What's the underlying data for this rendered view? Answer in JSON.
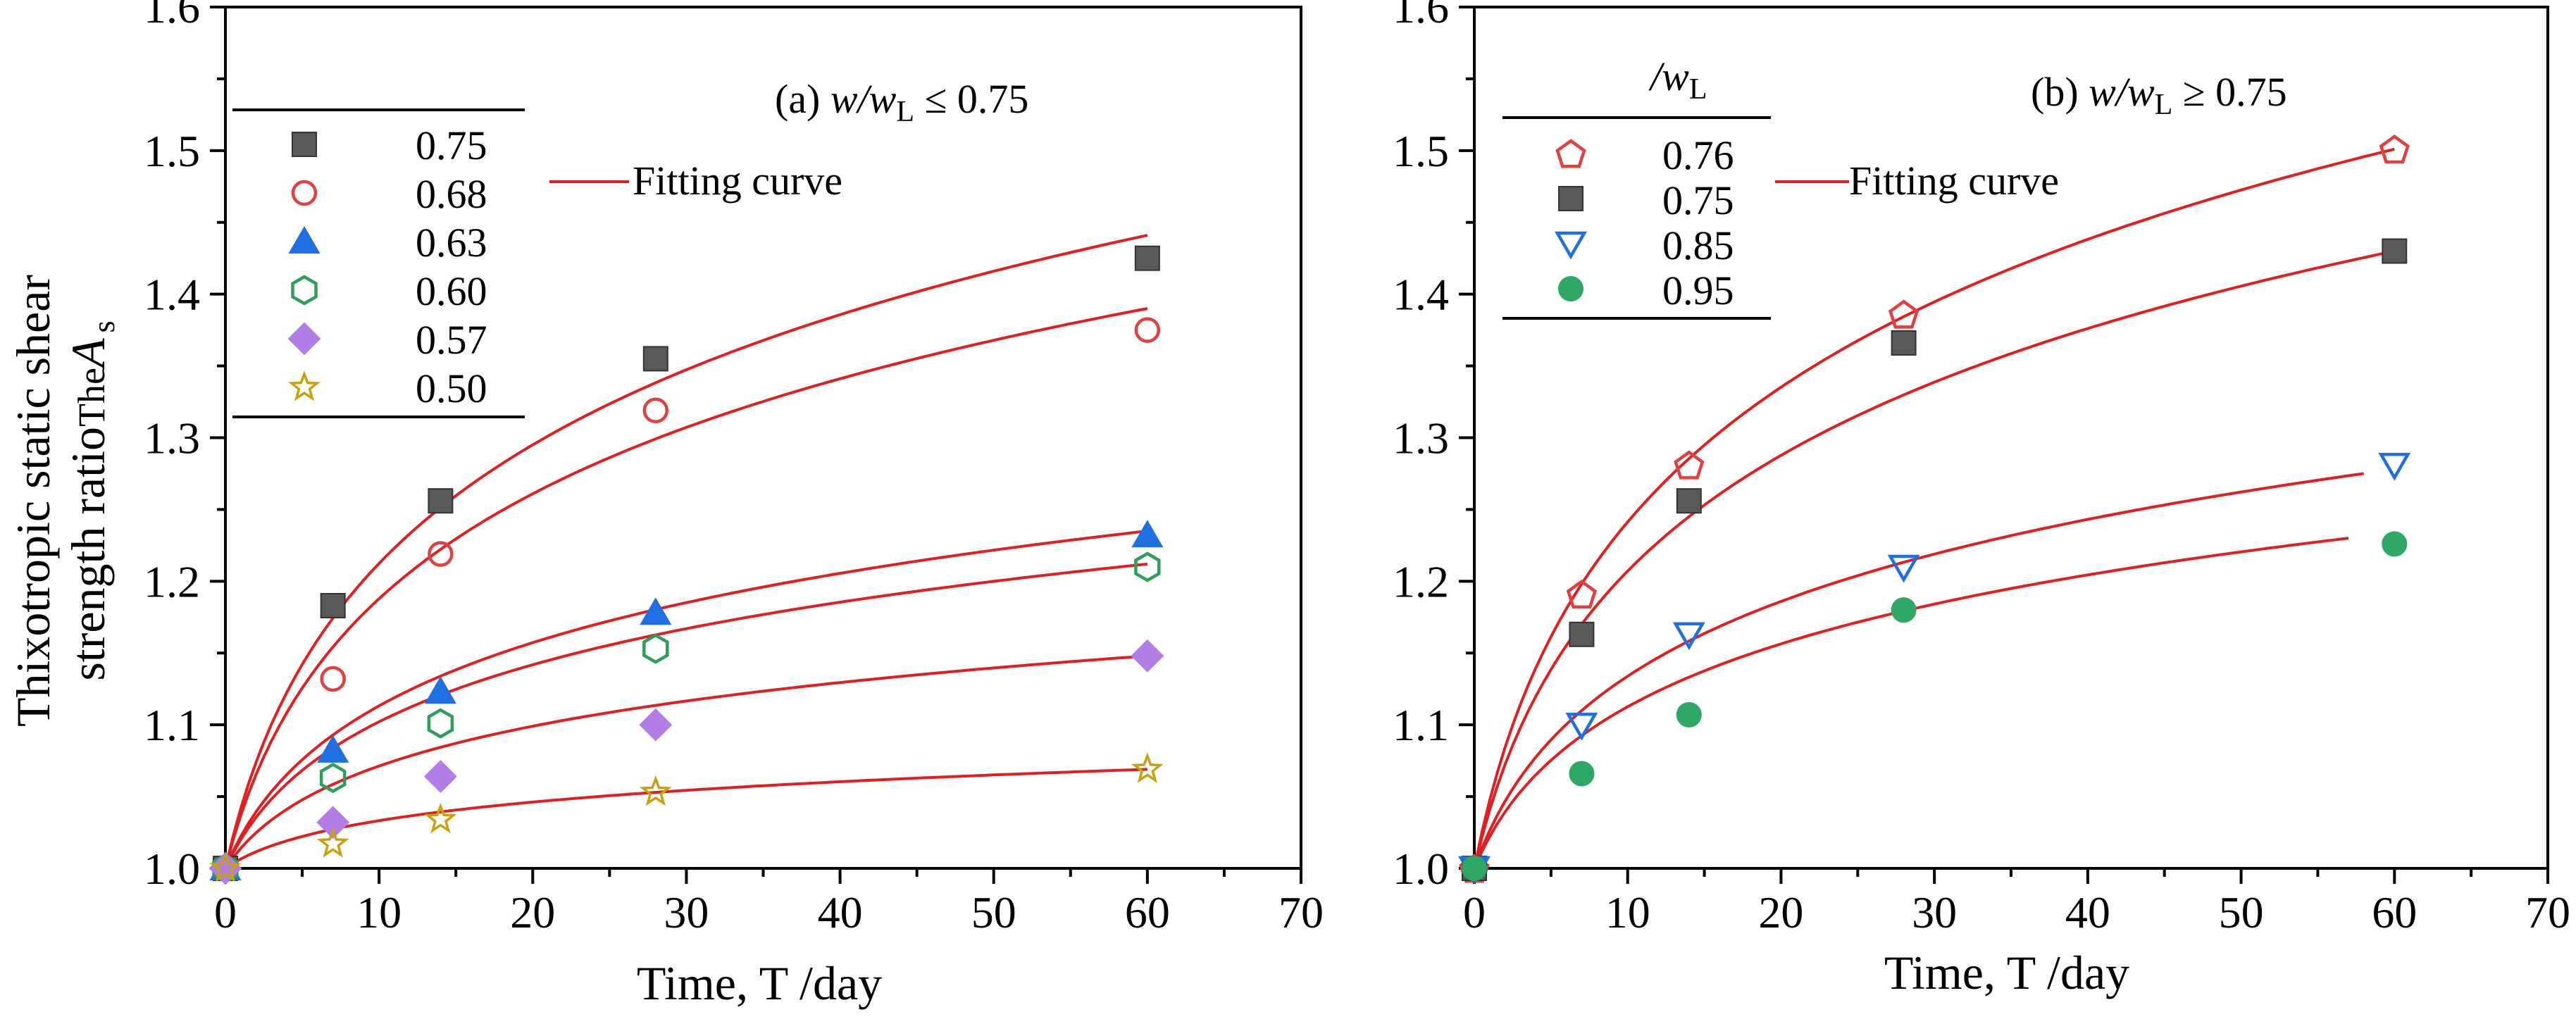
{
  "colors": {
    "fit": "#e02020",
    "axis": "#000000",
    "gray": "#595959",
    "red_open": "#e04040",
    "blue": "#1f6fe0",
    "green_open": "#2e9e5a",
    "purple": "#b27ee6",
    "gold": "#c9a010",
    "green": "#2ea864"
  },
  "chart_data": [
    {
      "type": "scatter",
      "panel": "a",
      "title": "(a) w/wL ≤ 0.75",
      "annotation": {
        "prefix": "(a) ",
        "var": "w/w",
        "sub": "L",
        "rel": " ≤ 0.75"
      },
      "xlabel": "Time, T /day",
      "ylabel_line1": "Thixotropic static shear",
      "ylabel_line2_a": "strength ratio",
      "ylabel_line2_b": "The",
      "ylabel_line2_c": "A",
      "ylabel_line2_sub": "s",
      "xlim": [
        0,
        70
      ],
      "ylim": [
        1.0,
        1.6
      ],
      "xticks": [
        "0",
        "10",
        "20",
        "30",
        "40",
        "50",
        "60",
        "70"
      ],
      "yticks": [
        "1.0",
        "1.1",
        "1.2",
        "1.3",
        "1.4",
        "1.5",
        "1.6"
      ],
      "legend_header": "",
      "fit_label": "Fitting curve",
      "series": [
        {
          "name": "0.75",
          "marker": "square",
          "color": "#595959",
          "filled": true,
          "x": [
            0,
            7,
            14,
            28,
            60
          ],
          "y": [
            1.0,
            1.183,
            1.256,
            1.355,
            1.425
          ],
          "fit_end": 60,
          "fit_y": [
            1.0,
            1.441
          ]
        },
        {
          "name": "0.68",
          "marker": "circle",
          "color": "#e04040",
          "filled": false,
          "x": [
            0,
            7,
            14,
            28,
            60
          ],
          "y": [
            1.0,
            1.132,
            1.219,
            1.319,
            1.375
          ],
          "fit_end": 60,
          "fit_y": [
            1.0,
            1.39
          ]
        },
        {
          "name": "0.63",
          "marker": "triangle",
          "color": "#1f6fe0",
          "filled": true,
          "x": [
            0,
            7,
            14,
            28,
            60
          ],
          "y": [
            1.0,
            1.082,
            1.123,
            1.178,
            1.232
          ],
          "fit_end": 60,
          "fit_y": [
            1.0,
            1.235
          ]
        },
        {
          "name": "0.60",
          "marker": "hexagon",
          "color": "#2e9e5a",
          "filled": false,
          "x": [
            0,
            7,
            14,
            28,
            60
          ],
          "y": [
            1.0,
            1.063,
            1.101,
            1.153,
            1.21
          ],
          "fit_end": 60,
          "fit_y": [
            1.0,
            1.212
          ]
        },
        {
          "name": "0.57",
          "marker": "diamond",
          "color": "#b27ee6",
          "filled": true,
          "x": [
            0,
            7,
            14,
            28,
            60
          ],
          "y": [
            1.0,
            1.032,
            1.064,
            1.1,
            1.148
          ],
          "fit_end": 60,
          "fit_y": [
            1.0,
            1.148
          ]
        },
        {
          "name": "0.50",
          "marker": "star",
          "color": "#c9a010",
          "filled": false,
          "x": [
            0,
            7,
            14,
            28,
            60
          ],
          "y": [
            1.0,
            1.017,
            1.034,
            1.053,
            1.069
          ],
          "fit_end": 60,
          "fit_y": [
            1.0,
            1.069
          ]
        }
      ]
    },
    {
      "type": "scatter",
      "panel": "b",
      "title": "(b) w/wL ≥ 0.75",
      "annotation": {
        "prefix": "(b)  ",
        "var": "w/w",
        "sub": "L",
        "rel": " ≥ 0.75"
      },
      "xlabel": "Time, T /day",
      "xlim": [
        0,
        70
      ],
      "ylim": [
        1.0,
        1.6
      ],
      "xticks": [
        "0",
        "10",
        "20",
        "30",
        "40",
        "50",
        "60",
        "70"
      ],
      "yticks": [
        "1.0",
        "1.1",
        "1.2",
        "1.3",
        "1.4",
        "1.5",
        "1.6"
      ],
      "legend_header": {
        "var": "/w",
        "sub": "L"
      },
      "fit_label": "Fitting curve",
      "series": [
        {
          "name": "0.76",
          "marker": "pentagon",
          "color": "#e04040",
          "filled": false,
          "x": [
            0,
            7,
            14,
            28,
            60
          ],
          "y": [
            1.0,
            1.191,
            1.281,
            1.386,
            1.501
          ],
          "fit_end": 60,
          "fit_y": [
            1.0,
            1.501
          ]
        },
        {
          "name": "0.75",
          "marker": "square",
          "color": "#595959",
          "filled": true,
          "x": [
            0,
            7,
            14,
            28,
            60
          ],
          "y": [
            1.0,
            1.163,
            1.256,
            1.366,
            1.43
          ],
          "fit_end": 60,
          "fit_y": [
            1.0,
            1.43
          ]
        },
        {
          "name": "0.85",
          "marker": "tri_down",
          "color": "#1f6fe0",
          "filled": false,
          "x": [
            0,
            7,
            14,
            28,
            60
          ],
          "y": [
            1.0,
            1.1,
            1.163,
            1.21,
            1.281
          ],
          "fit_end": 58,
          "fit_y": [
            1.0,
            1.275
          ]
        },
        {
          "name": "0.95",
          "marker": "circle",
          "color": "#2ea864",
          "filled": true,
          "x": [
            0,
            7,
            14,
            28,
            60
          ],
          "y": [
            1.0,
            1.066,
            1.107,
            1.18,
            1.226
          ],
          "fit_end": 57,
          "fit_y": [
            1.0,
            1.23
          ]
        }
      ]
    }
  ]
}
